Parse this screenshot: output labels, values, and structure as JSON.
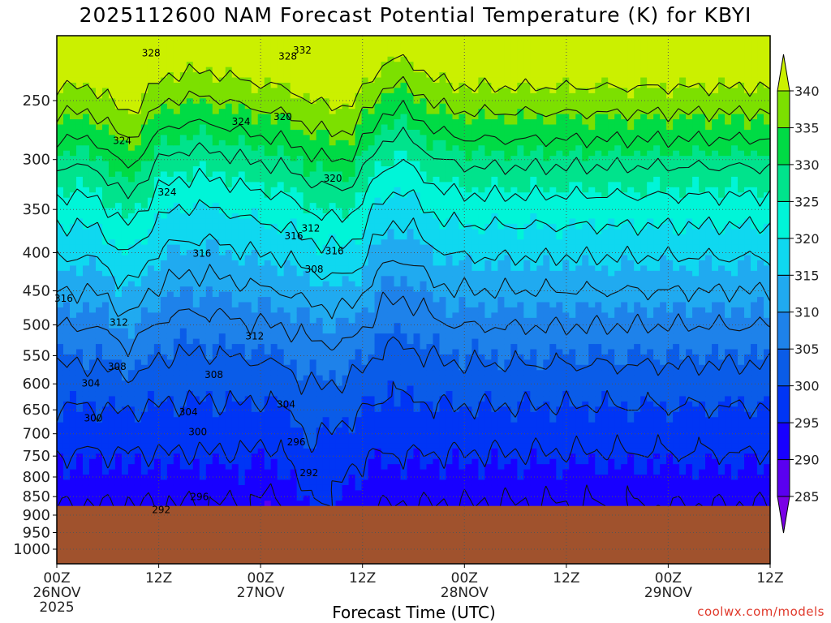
{
  "header": {
    "title": "2025112600 NAM Forecast Potential Temperature (K) for KBYI"
  },
  "footer": {
    "xlabel": "Forecast Time (UTC)",
    "credit": "coolwx.com/models"
  },
  "chart_data": {
    "type": "contour",
    "title": "2025112600 NAM Forecast Potential Temperature (K) for KBYI",
    "xlabel": "Forecast Time (UTC)",
    "ylabel": "",
    "x_ticks": [
      "00Z",
      "12Z",
      "00Z",
      "12Z",
      "00Z",
      "12Z",
      "00Z",
      "12Z"
    ],
    "x_tick_hours": [
      0,
      12,
      24,
      36,
      48,
      60,
      72,
      84
    ],
    "x_date_labels": [
      {
        "hour": 0,
        "label": "26NOV"
      },
      {
        "hour": 24,
        "label": "27NOV"
      },
      {
        "hour": 48,
        "label": "28NOV"
      },
      {
        "hour": 72,
        "label": "29NOV"
      }
    ],
    "x_year_label": "2025",
    "xlim": [
      0,
      84
    ],
    "y_ticks": [
      250,
      300,
      350,
      400,
      450,
      500,
      550,
      600,
      650,
      700,
      750,
      800,
      850,
      900,
      950,
      1000
    ],
    "ylim": [
      1050,
      200
    ],
    "y_scale": "log-pressure",
    "grid": true,
    "surface_pressure_hpa": 875,
    "colorbar": {
      "levels": [
        285,
        290,
        295,
        300,
        305,
        310,
        315,
        320,
        325,
        330,
        335,
        340
      ],
      "labels": [
        "285",
        "290",
        "295",
        "300",
        "305",
        "310",
        "315",
        "320",
        "325",
        "330",
        "335",
        "340"
      ],
      "colors": [
        "#7a00e6",
        "#5a00f0",
        "#1800ff",
        "#0035f5",
        "#0a5ce8",
        "#1e82ea",
        "#20aaf0",
        "#0fd8f0",
        "#00f5d8",
        "#00e38c",
        "#00db45",
        "#7ce000",
        "#cbf000"
      ]
    },
    "contour_labels": [
      {
        "hour": 0.8,
        "p": 461,
        "text": "316"
      },
      {
        "hour": 11.1,
        "p": 216,
        "text": "328"
      },
      {
        "hour": 7.7,
        "p": 283,
        "text": "324"
      },
      {
        "hour": 7.3,
        "p": 496,
        "text": "312"
      },
      {
        "hour": 7.1,
        "p": 569,
        "text": "308"
      },
      {
        "hour": 4.0,
        "p": 599,
        "text": "304"
      },
      {
        "hour": 4.3,
        "p": 667,
        "text": "300"
      },
      {
        "hour": 12.3,
        "p": 886,
        "text": "292"
      },
      {
        "hour": 13.0,
        "p": 332,
        "text": "324"
      },
      {
        "hour": 17.1,
        "p": 401,
        "text": "316"
      },
      {
        "hour": 15.5,
        "p": 655,
        "text": "304"
      },
      {
        "hour": 16.6,
        "p": 696,
        "text": "300"
      },
      {
        "hour": 16.8,
        "p": 851,
        "text": "296"
      },
      {
        "hour": 18.5,
        "p": 583,
        "text": "308"
      },
      {
        "hour": 21.7,
        "p": 267,
        "text": "324"
      },
      {
        "hour": 23.3,
        "p": 518,
        "text": "312"
      },
      {
        "hour": 27.0,
        "p": 639,
        "text": "304"
      },
      {
        "hour": 27.2,
        "p": 218,
        "text": "328"
      },
      {
        "hour": 28.9,
        "p": 214,
        "text": "332"
      },
      {
        "hour": 26.6,
        "p": 263,
        "text": "320"
      },
      {
        "hour": 27.9,
        "p": 380,
        "text": "316"
      },
      {
        "hour": 29.9,
        "p": 371,
        "text": "312"
      },
      {
        "hour": 30.3,
        "p": 421,
        "text": "308"
      },
      {
        "hour": 32.5,
        "p": 318,
        "text": "320"
      },
      {
        "hour": 32.7,
        "p": 398,
        "text": "316"
      },
      {
        "hour": 28.2,
        "p": 718,
        "text": "296"
      },
      {
        "hour": 29.7,
        "p": 790,
        "text": "292"
      }
    ]
  }
}
